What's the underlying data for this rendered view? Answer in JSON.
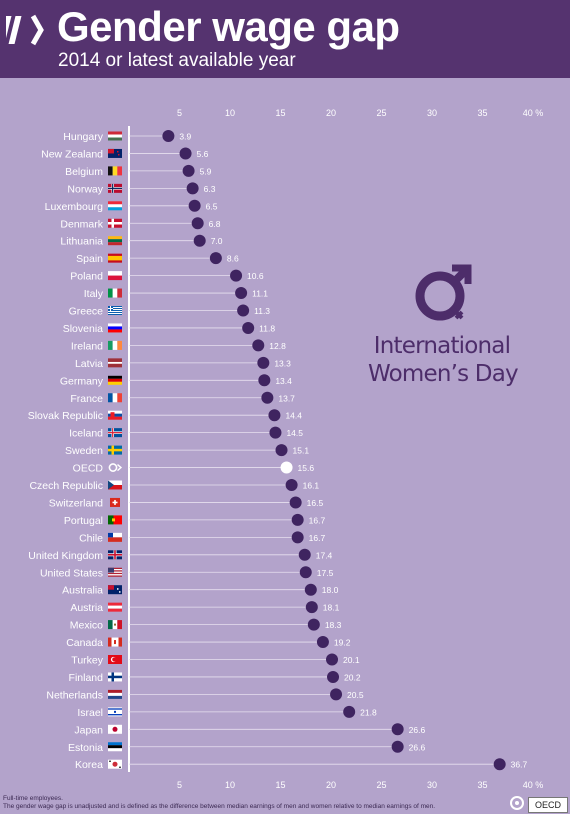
{
  "header": {
    "title": "Gender wage gap",
    "subtitle": "2014 or latest available year",
    "background": "#55336f"
  },
  "chart_data": {
    "type": "scatter",
    "orientation": "horizontal",
    "title": "Gender wage gap",
    "subtitle": "2014 or latest available year",
    "unit": "%",
    "xlim": [
      0,
      40
    ],
    "x_ticks": [
      5,
      10,
      15,
      20,
      25,
      30,
      35,
      40
    ],
    "grid": false,
    "background": "#b3a3cb",
    "point_color": "#3f2460",
    "highlight_color": "#ffffff",
    "categories": [
      "Hungary",
      "New Zealand",
      "Belgium",
      "Norway",
      "Luxembourg",
      "Denmark",
      "Lithuania",
      "Spain",
      "Poland",
      "Italy",
      "Greece",
      "Slovenia",
      "Ireland",
      "Latvia",
      "Germany",
      "France",
      "Slovak Republic",
      "Iceland",
      "Sweden",
      "OECD",
      "Czech Republic",
      "Switzerland",
      "Portugal",
      "Chile",
      "United Kingdom",
      "United States",
      "Australia",
      "Austria",
      "Mexico",
      "Canada",
      "Turkey",
      "Finland",
      "Netherlands",
      "Israel",
      "Japan",
      "Estonia",
      "Korea"
    ],
    "values": [
      3.9,
      5.6,
      5.9,
      6.3,
      6.5,
      6.8,
      7.0,
      8.6,
      10.6,
      11.1,
      11.3,
      11.8,
      12.8,
      13.3,
      13.4,
      13.7,
      14.4,
      14.5,
      15.1,
      15.6,
      16.1,
      16.5,
      16.7,
      16.7,
      17.4,
      17.5,
      18.0,
      18.1,
      18.3,
      19.2,
      20.1,
      20.2,
      20.5,
      21.8,
      26.6,
      26.6,
      36.7
    ],
    "value_labels": [
      "3.9",
      "5.6",
      "5.9",
      "6.3",
      "6.5",
      "6.8",
      "7.0",
      "8.6",
      "10.6",
      "11.1",
      "11.3",
      "11.8",
      "12.8",
      "13.3",
      "13.4",
      "13.7",
      "14.4",
      "14.5",
      "15.1",
      "15.6",
      "16.1",
      "16.5",
      "16.7",
      "16.7",
      "17.4",
      "17.5",
      "18.0",
      "18.1",
      "18.3",
      "19.2",
      "20.1",
      "20.2",
      "20.5",
      "21.8",
      "26.6",
      "26.6",
      "36.7"
    ],
    "flags": [
      "hu",
      "nz",
      "be",
      "no",
      "lu",
      "dk",
      "lt",
      "es",
      "pl",
      "it",
      "gr",
      "si",
      "ie",
      "lv",
      "de",
      "fr",
      "sk",
      "is",
      "se",
      "oecd",
      "cz",
      "ch",
      "pt",
      "cl",
      "gb",
      "us",
      "au",
      "at",
      "mx",
      "ca",
      "tr",
      "fi",
      "nl",
      "il",
      "jp",
      "ee",
      "kr"
    ],
    "highlight": "OECD"
  },
  "badge": {
    "line1": "International",
    "line2": "Women’s Day",
    "color": "#4d2d6a"
  },
  "footer": {
    "note1": "Full-time employees.",
    "note2": "The gender wage gap is unadjusted and is defined as the difference between median earnings of men and women relative to median earnings of men.",
    "source": "OECD"
  }
}
